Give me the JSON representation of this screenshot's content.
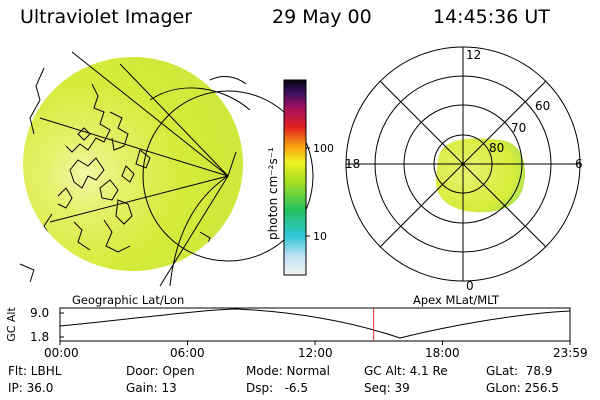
{
  "header": {
    "instrument": "Ultraviolet Imager",
    "date": "29 May 00",
    "time": "14:45:36 UT"
  },
  "colorbar": {
    "unit_label": "photon cm⁻²s⁻¹",
    "tick_100": "100",
    "tick_10": "10"
  },
  "polar": {
    "mlt_12": "12",
    "mlt_18": "18",
    "mlt_6": "6",
    "mlt_0": "0",
    "lat_60": "60",
    "lat_70": "70",
    "lat_80": "80"
  },
  "panel_titles": {
    "geo": "Geographic Lat/Lon",
    "apex": "Apex MLat/MLT"
  },
  "altitude_plot": {
    "y_label": "GC Alt",
    "y_max": "9.0",
    "y_min": "1.8",
    "x_ticks": [
      "00:00",
      "06:00",
      "12:00",
      "18:00",
      "23:59"
    ],
    "current_time_fraction": 0.615,
    "marker_color": "#e03030"
  },
  "status": {
    "filter": "Flt: LBHL",
    "ip": "IP: 36.0",
    "door": "Door: Open",
    "gain": "Gain: 13",
    "mode": "Mode: Normal",
    "dsp": "Dsp:   -6.5",
    "gc_alt": "GC Alt: 4.1 Re",
    "seq": "Seq: 39",
    "glat": "GLat:  78.9",
    "glon": "GLon: 256.5"
  },
  "colors": {
    "image_fill": "#d8ec3a",
    "image_bright": "#f2f6a6",
    "image_edge": "#8fdc6a"
  }
}
